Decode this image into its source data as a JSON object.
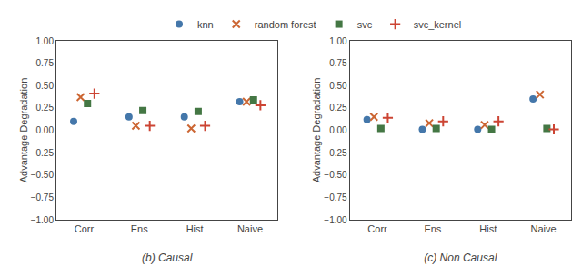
{
  "chart_data": [
    {
      "type": "scatter",
      "subtitle": "(b) Causal",
      "y_label": "Advantage Degradation",
      "categories": [
        "Corr",
        "Ens",
        "Hist",
        "Naive"
      ],
      "series": [
        {
          "name": "knn",
          "color": "#4477AA",
          "marker": "circle",
          "values": [
            0.1,
            0.15,
            0.15,
            0.32
          ]
        },
        {
          "name": "random forest",
          "color": "#CC6633",
          "marker": "x",
          "values": [
            0.37,
            0.05,
            0.02,
            0.32
          ]
        },
        {
          "name": "svc",
          "color": "#447744",
          "marker": "square",
          "values": [
            0.3,
            0.22,
            0.21,
            0.34
          ]
        },
        {
          "name": "svc_kernel",
          "color": "#CC4433",
          "marker": "cross",
          "values": [
            0.41,
            0.05,
            0.05,
            0.28
          ]
        }
      ],
      "ylim": [
        -1.0,
        1.0
      ],
      "yticks": [
        {
          "value": -1.0,
          "label": "−1.00"
        },
        {
          "value": -0.75,
          "label": "−0.75"
        },
        {
          "value": -0.5,
          "label": "−0.50"
        },
        {
          "value": -0.25,
          "label": "−0.25"
        },
        {
          "value": 0.0,
          "label": "0.00"
        },
        0.25,
        {
          "value": 0.5,
          "label": "0.50"
        },
        0.75,
        {
          "value": 1.0,
          "label": "1.00"
        }
      ],
      "grid": false,
      "legend": "top"
    },
    {
      "type": "scatter",
      "subtitle": "(c) Non Causal",
      "y_label": "Advantage Degradation",
      "categories": [
        "Corr",
        "Ens",
        "Hist",
        "Naive"
      ],
      "series": [
        {
          "name": "knn",
          "color": "#4477AA",
          "marker": "circle",
          "values": [
            0.12,
            0.01,
            0.01,
            0.35
          ]
        },
        {
          "name": "random forest",
          "color": "#CC6633",
          "marker": "x",
          "values": [
            0.15,
            0.08,
            0.06,
            0.4
          ]
        },
        {
          "name": "svc",
          "color": "#447744",
          "marker": "square",
          "values": [
            0.02,
            0.02,
            0.01,
            0.02
          ]
        },
        {
          "name": "svc_kernel",
          "color": "#CC4433",
          "marker": "cross",
          "values": [
            0.14,
            0.1,
            0.1,
            0.01
          ]
        }
      ],
      "ylim": [
        -1.0,
        1.0
      ],
      "yticks": [
        {
          "value": -1.0,
          "label": "−1.00"
        },
        {
          "value": -0.75,
          "label": "−0.75"
        },
        {
          "value": -0.5,
          "label": "−0.50"
        },
        {
          "value": -0.25,
          "label": "−0.25"
        },
        {
          "value": 0.0,
          "label": "0.00"
        },
        0.25,
        {
          "value": 0.5,
          "label": "0.50"
        },
        0.75,
        {
          "value": 1.0,
          "label": "1.00"
        }
      ],
      "grid": false
    }
  ]
}
